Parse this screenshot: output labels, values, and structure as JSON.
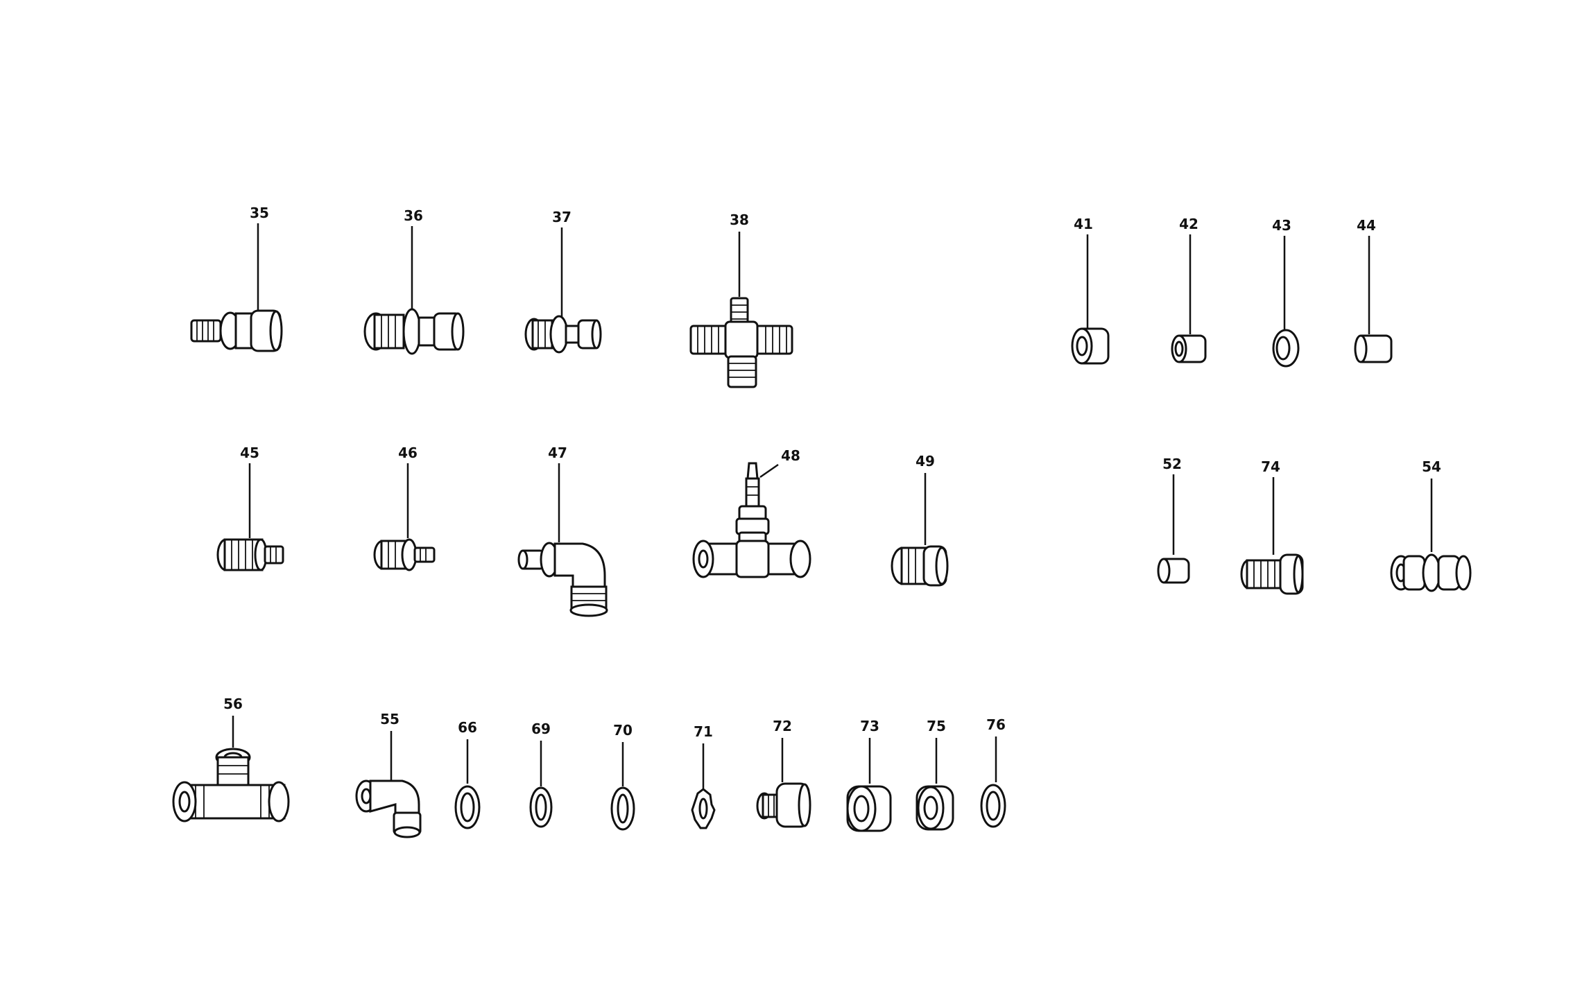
{
  "diagram": {
    "parts": [
      {
        "number": "35",
        "kind": "union-nut-fitting"
      },
      {
        "number": "36",
        "kind": "union-nut-fitting-large"
      },
      {
        "number": "37",
        "kind": "union-nut-fitting-small"
      },
      {
        "number": "38",
        "kind": "cross-fitting"
      },
      {
        "number": "41",
        "kind": "sleeve"
      },
      {
        "number": "42",
        "kind": "sleeve"
      },
      {
        "number": "43",
        "kind": "ring"
      },
      {
        "number": "44",
        "kind": "sleeve"
      },
      {
        "number": "45",
        "kind": "threaded-adapter"
      },
      {
        "number": "46",
        "kind": "threaded-adapter-small"
      },
      {
        "number": "47",
        "kind": "elbow-fitting"
      },
      {
        "number": "48",
        "kind": "tee-with-bleed-nipple"
      },
      {
        "number": "49",
        "kind": "plug"
      },
      {
        "number": "52",
        "kind": "sleeve-small"
      },
      {
        "number": "74",
        "kind": "banjo-bolt"
      },
      {
        "number": "54",
        "kind": "double-union"
      },
      {
        "number": "56",
        "kind": "tee-fitting"
      },
      {
        "number": "55",
        "kind": "elbow-small"
      },
      {
        "number": "66",
        "kind": "washer"
      },
      {
        "number": "69",
        "kind": "washer"
      },
      {
        "number": "70",
        "kind": "washer"
      },
      {
        "number": "71",
        "kind": "lock-washer"
      },
      {
        "number": "72",
        "kind": "hex-plug"
      },
      {
        "number": "73",
        "kind": "hex-nut"
      },
      {
        "number": "75",
        "kind": "hex-nut"
      },
      {
        "number": "76",
        "kind": "washer"
      }
    ]
  }
}
